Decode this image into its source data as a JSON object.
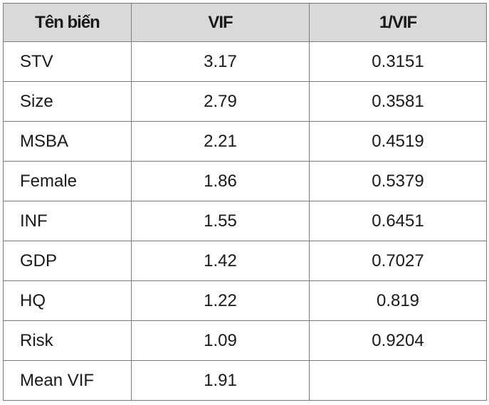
{
  "table": {
    "headers": [
      "Tên biến",
      "VIF",
      "1/VIF"
    ],
    "rows": [
      {
        "name": "STV",
        "vif": "3.17",
        "inv": "0.3151"
      },
      {
        "name": "Size",
        "vif": "2.79",
        "inv": "0.3581"
      },
      {
        "name": "MSBA",
        "vif": "2.21",
        "inv": "0.4519"
      },
      {
        "name": "Female",
        "vif": "1.86",
        "inv": "0.5379"
      },
      {
        "name": "INF",
        "vif": "1.55",
        "inv": "0.6451"
      },
      {
        "name": "GDP",
        "vif": "1.42",
        "inv": "0.7027"
      },
      {
        "name": "HQ",
        "vif": "1.22",
        "inv": "0.819"
      },
      {
        "name": "Risk",
        "vif": "1.09",
        "inv": "0.9204"
      },
      {
        "name": "Mean VIF",
        "vif": "1.91",
        "inv": ""
      }
    ],
    "header_bg": "#d9d9d9",
    "border_color": "#7a7a7a"
  }
}
